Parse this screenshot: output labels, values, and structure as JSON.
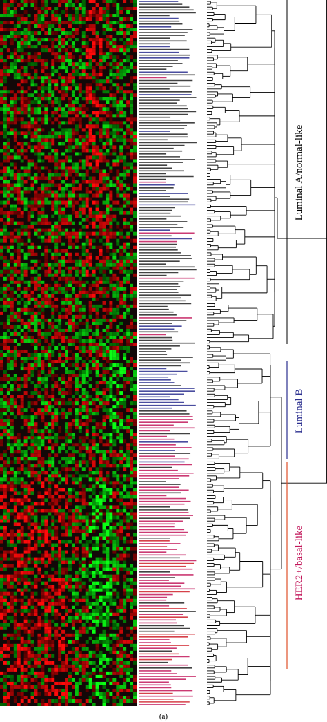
{
  "figure": {
    "groups": [
      {
        "label": "Luminal A/normal-like",
        "color": "#000000"
      },
      {
        "label": "Luminal B",
        "color": "#2b2f8f"
      },
      {
        "label": "HER2+/basal-like",
        "color": "#c2185b"
      }
    ],
    "panel_label": "(a)"
  }
}
